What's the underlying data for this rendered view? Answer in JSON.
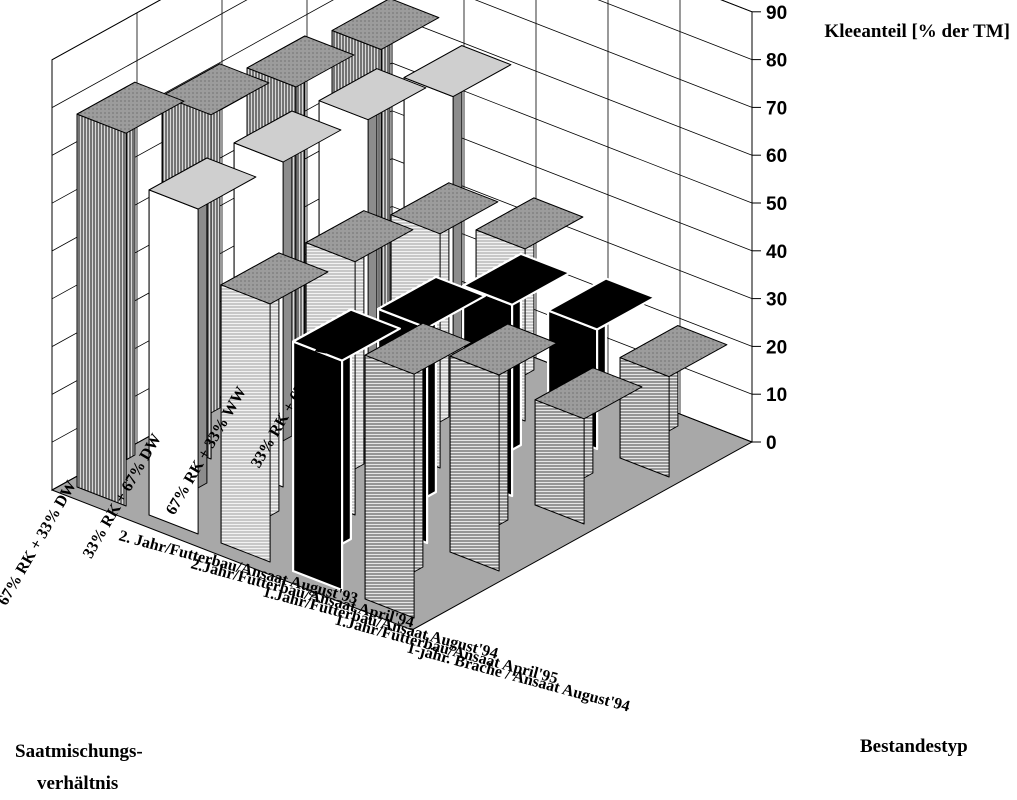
{
  "chart_data": {
    "type": "bar",
    "subtype": "3d-bar",
    "title": "Kleeanteil [% der TM]",
    "zlabel": "Kleeanteil [% der TM]",
    "xlabel": "Saatmischungs- verhältnis",
    "ylabel": "Bestandestyp",
    "zlim": [
      0,
      90
    ],
    "zticks": [
      "0",
      "10",
      "20",
      "30",
      "40",
      "50",
      "60",
      "70",
      "80",
      "90"
    ],
    "mixtures": [
      "67% RK + 33% DW",
      "33% RK + 67% DW",
      "67% RK + 33% WW",
      "33% RK + 67% WW"
    ],
    "stand_types": [
      "1-jähr. Brache / Ansaat August'94",
      "1.Jahr/Futterbau/Ansaat April'95",
      "1.Jahr/Futterbau/Ansaat August'94",
      "2.Jahr/Futterbau/Ansaat April'94",
      "2. Jahr/Futterbau/Ansaat August'93"
    ],
    "grid": true,
    "series": [
      {
        "name": "67% RK + 33% DW",
        "values": [
          51,
          48,
          54,
          68,
          78
        ]
      },
      {
        "name": "33% RK + 67% DW",
        "values": [
          41,
          45,
          53,
          68,
          72
        ]
      },
      {
        "name": "67% RK + 33% WW",
        "values": [
          22,
          40,
          49,
          67,
          68
        ]
      },
      {
        "name": "33% RK + 67% WW",
        "values": [
          21,
          25,
          36,
          62,
          66
        ]
      }
    ],
    "colors": {
      "front_hatch": "#b8b8b8",
      "black": "#000000",
      "white": "#ffffff",
      "gray": "#8c8c8c",
      "vertical_hatch": "#aaaaaa"
    }
  },
  "labels": {
    "ztitle": "Kleeanteil [% der TM]",
    "xaxis_line1": "Saatmischungs-",
    "xaxis_line2": "verhältnis",
    "yaxis": "Bestandestyp"
  }
}
